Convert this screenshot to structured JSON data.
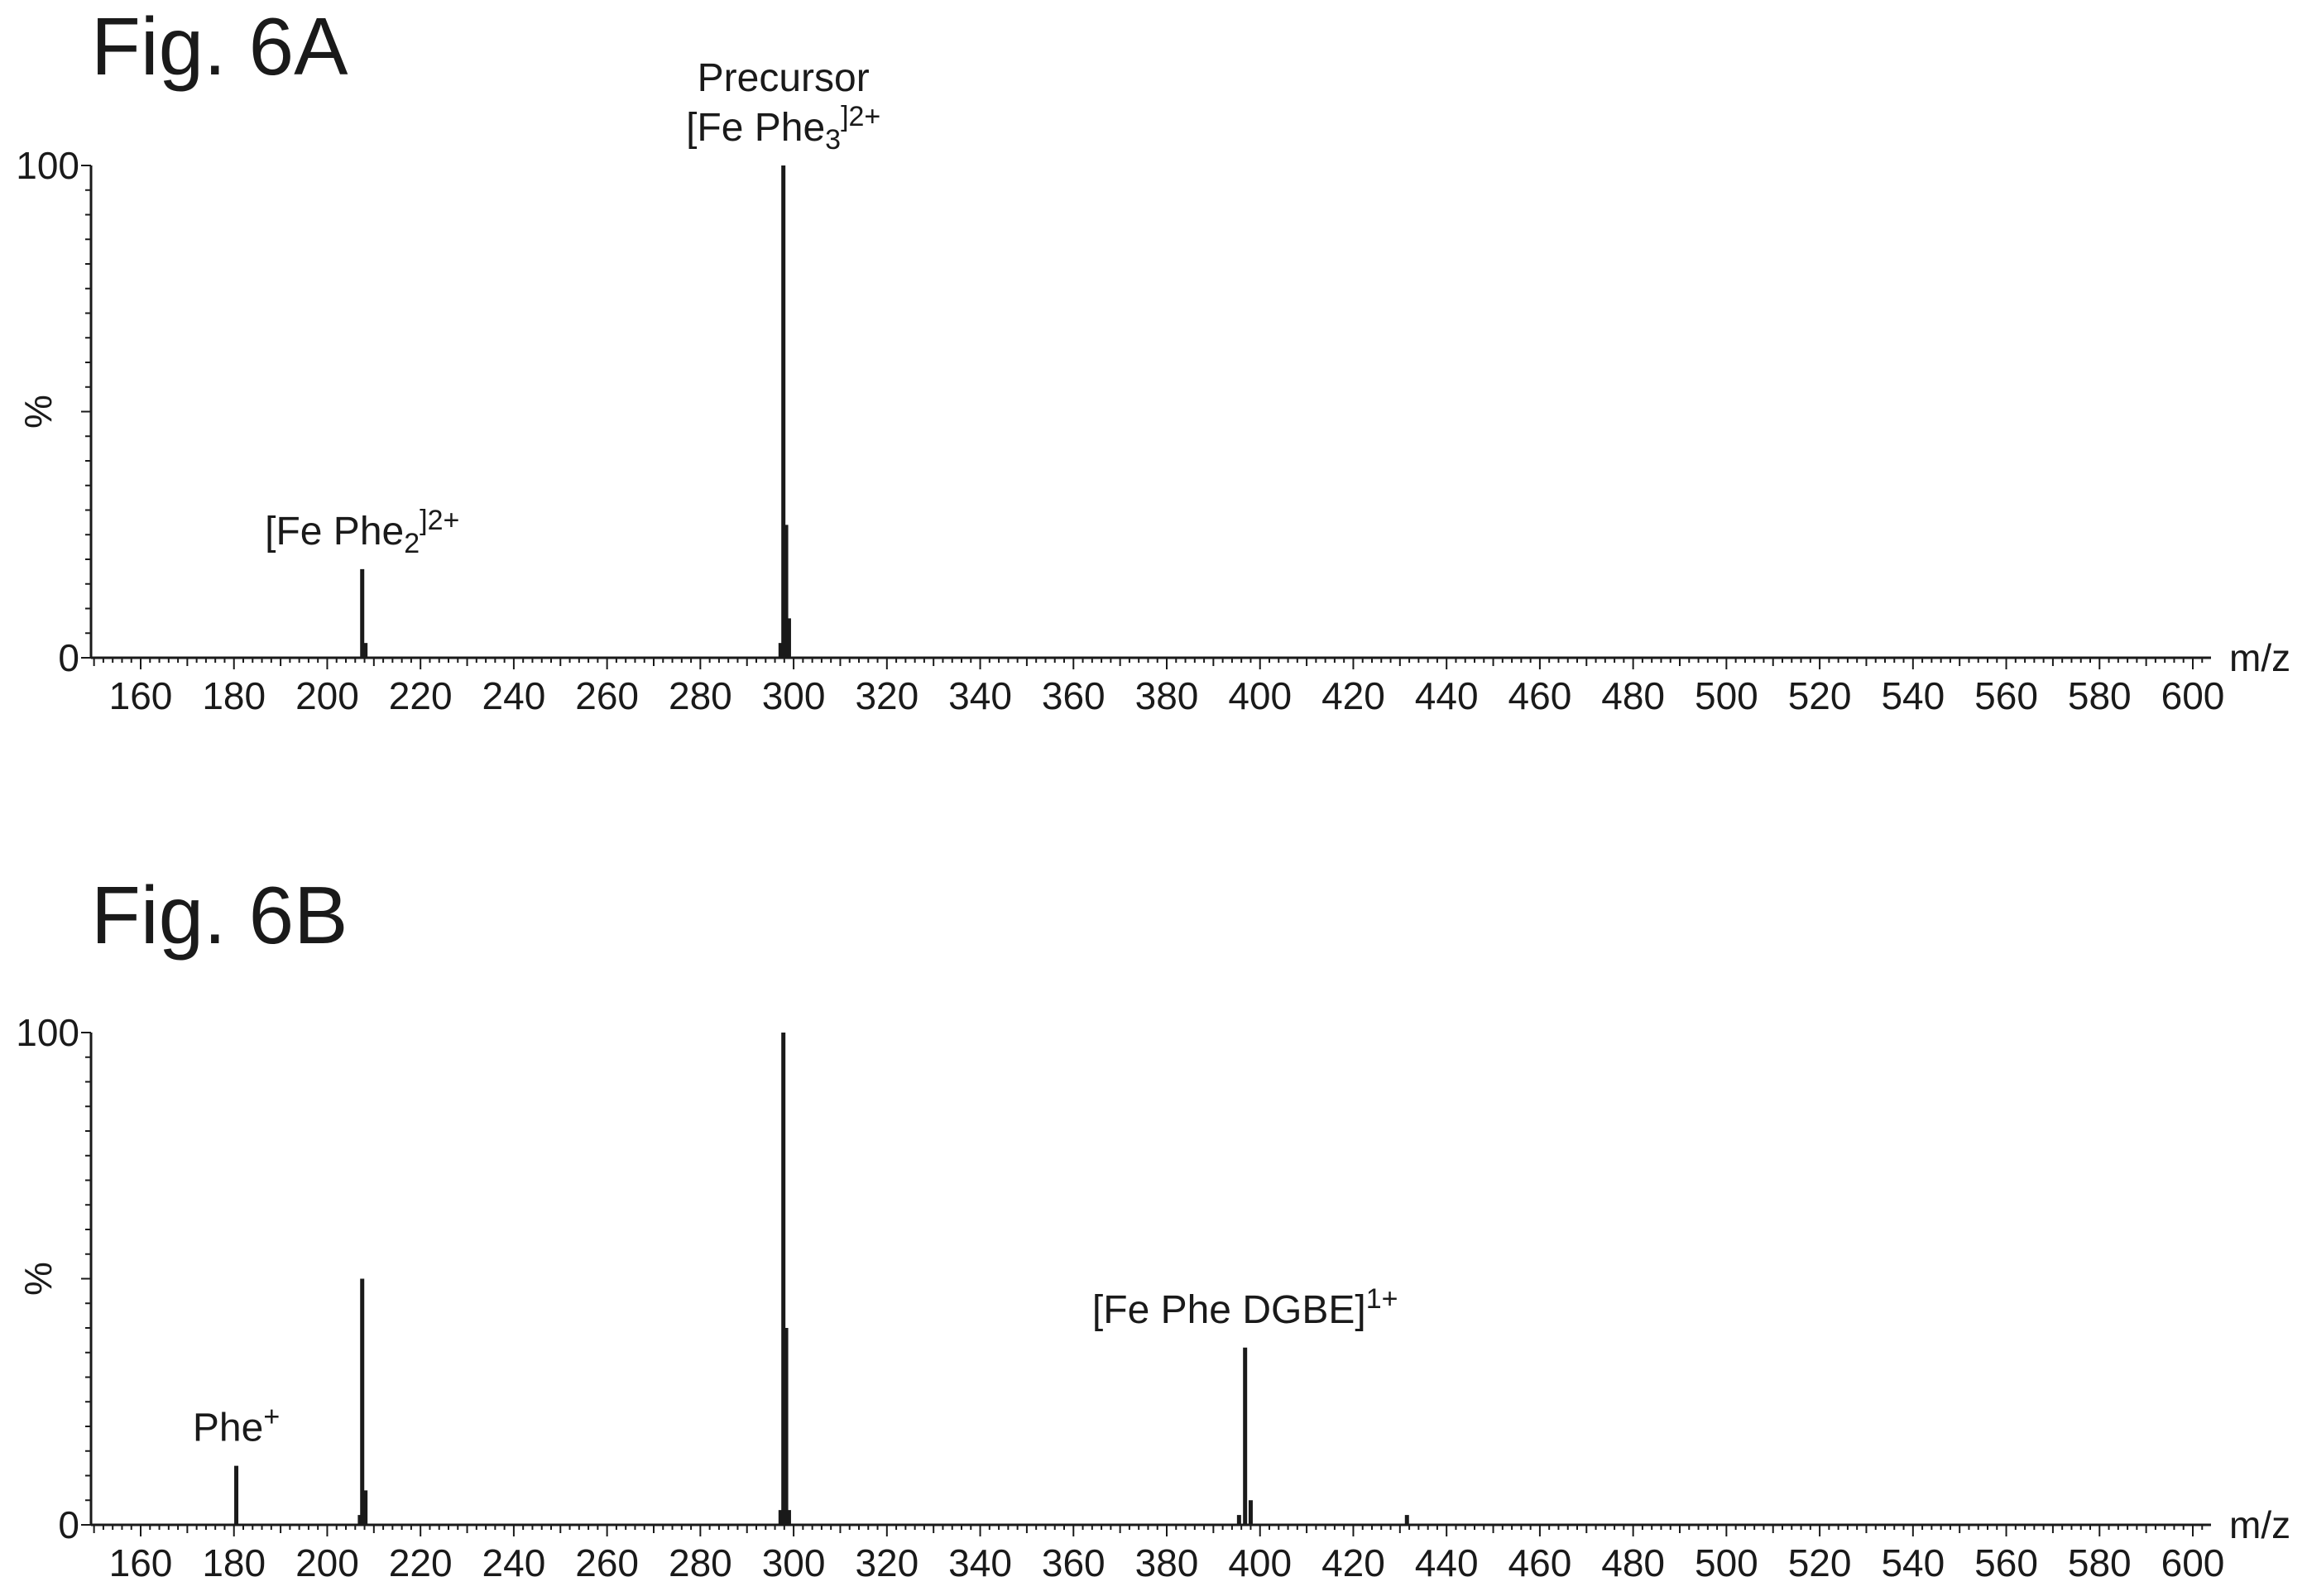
{
  "chart_data": [
    {
      "type": "bar",
      "title": "Fig. 6A",
      "xlabel": "m/z",
      "ylabel": "%",
      "xlim": [
        150,
        602
      ],
      "ylim": [
        0,
        100
      ],
      "x_ticks": [
        160,
        180,
        200,
        220,
        240,
        260,
        280,
        300,
        320,
        340,
        360,
        380,
        400,
        420,
        440,
        460,
        480,
        500,
        520,
        540,
        560,
        580,
        600
      ],
      "y_ticks": [
        0,
        100
      ],
      "grid": false,
      "peaks": [
        {
          "x": 207.5,
          "y": 18
        },
        {
          "x": 208.2,
          "y": 3
        },
        {
          "x": 297.2,
          "y": 3
        },
        {
          "x": 297.8,
          "y": 100
        },
        {
          "x": 298.4,
          "y": 27
        },
        {
          "x": 299.0,
          "y": 8
        }
      ],
      "annotations": [
        {
          "x": 207.5,
          "y": 18,
          "lines": [
            {
              "main": "[Fe Phe",
              "sub": "2",
              "sup": "]2+"
            }
          ]
        },
        {
          "x": 297.8,
          "y": 100,
          "lines": [
            {
              "main": "Precursor",
              "sub": "",
              "sup": ""
            },
            {
              "main": "[Fe Phe",
              "sub": "3",
              "sup": "]2+"
            }
          ]
        }
      ]
    },
    {
      "type": "bar",
      "title": "Fig. 6B",
      "xlabel": "m/z",
      "ylabel": "%",
      "xlim": [
        150,
        602
      ],
      "ylim": [
        0,
        100
      ],
      "x_ticks": [
        160,
        180,
        200,
        220,
        240,
        260,
        280,
        300,
        320,
        340,
        360,
        380,
        400,
        420,
        440,
        460,
        480,
        500,
        520,
        540,
        560,
        580,
        600
      ],
      "y_ticks": [
        0,
        100
      ],
      "grid": false,
      "peaks": [
        {
          "x": 180.5,
          "y": 12
        },
        {
          "x": 207.0,
          "y": 2
        },
        {
          "x": 207.5,
          "y": 50
        },
        {
          "x": 208.2,
          "y": 7
        },
        {
          "x": 297.2,
          "y": 3
        },
        {
          "x": 297.8,
          "y": 100
        },
        {
          "x": 298.4,
          "y": 40
        },
        {
          "x": 299.0,
          "y": 3
        },
        {
          "x": 395.5,
          "y": 2
        },
        {
          "x": 396.8,
          "y": 36
        },
        {
          "x": 398.0,
          "y": 5
        },
        {
          "x": 431.5,
          "y": 2
        }
      ],
      "annotations": [
        {
          "x": 180.5,
          "y": 12,
          "lines": [
            {
              "main": "Phe",
              "sub": "",
              "sup": "+"
            }
          ]
        },
        {
          "x": 396.8,
          "y": 36,
          "lines": [
            {
              "main": "[Fe Phe DGBE]",
              "sub": "",
              "sup": "1+"
            }
          ]
        }
      ]
    }
  ]
}
